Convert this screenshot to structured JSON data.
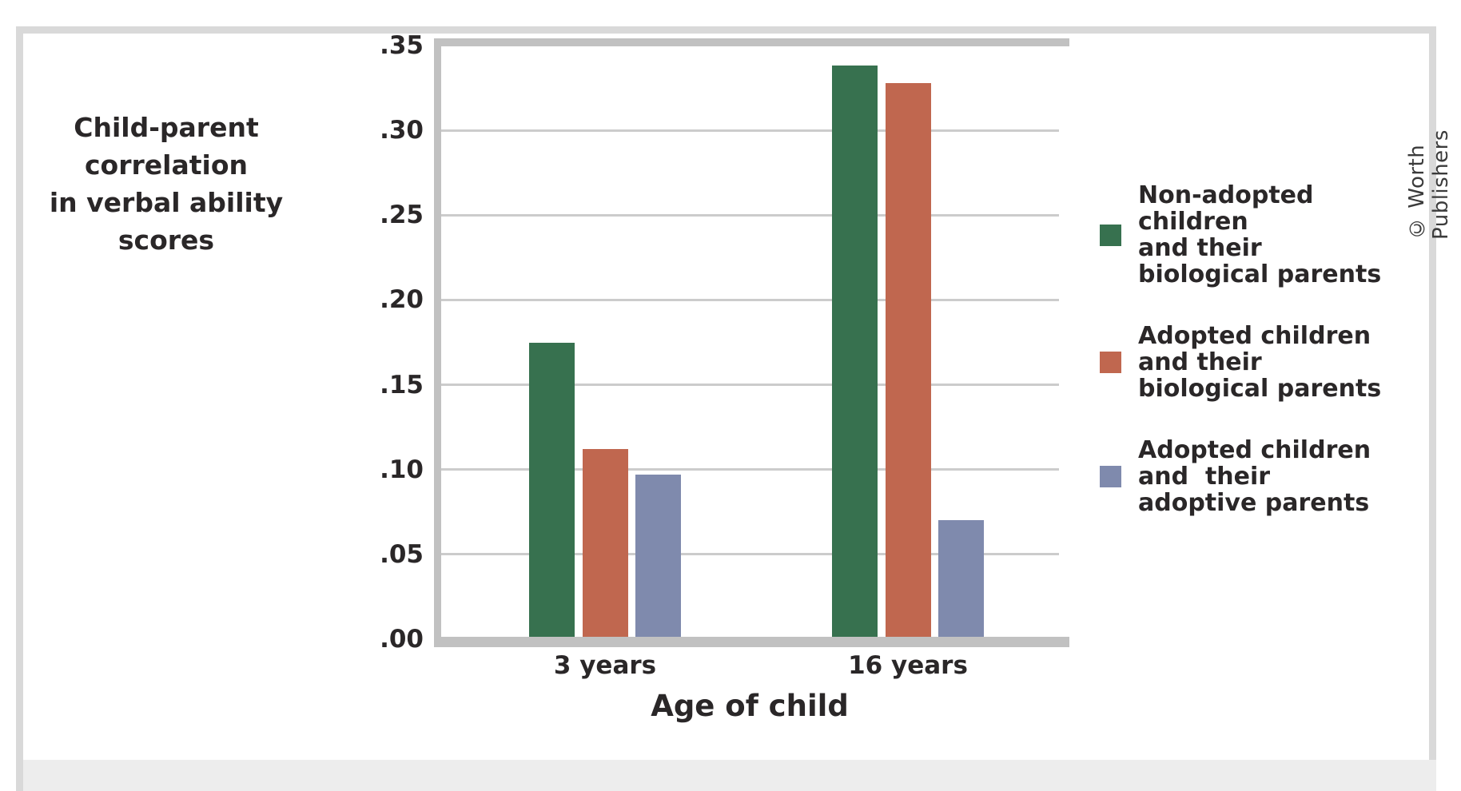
{
  "figure": {
    "title_lines": [
      "Child-parent correlation",
      "in verbal ability scores"
    ],
    "credit": "© Worth Publishers",
    "colors": {
      "series_green": "#37714f",
      "series_orange": "#c0674f",
      "series_blue": "#7f8aad",
      "axis_gray": "#c1c1c1",
      "gridline_gray": "#cccccc",
      "panel_border": "#d9d9d9",
      "footer_band": "#ededed",
      "text": "#2a2728"
    }
  },
  "legend": {
    "entries": [
      {
        "color": "#37714f",
        "lines": [
          "Non-adopted children",
          "and their",
          "biological parents"
        ]
      },
      {
        "color": "#c0674f",
        "lines": [
          "Adopted children",
          "and their",
          "biological parents"
        ]
      },
      {
        "color": "#7f8aad",
        "lines": [
          "Adopted children",
          "and  their",
          "adoptive parents"
        ]
      }
    ]
  },
  "chart_data": {
    "type": "bar",
    "title": "Child-parent correlation in verbal ability scores",
    "xlabel": "Age of child",
    "ylabel": "Child-parent correlation in verbal ability scores",
    "categories": [
      "3 years",
      "16 years"
    ],
    "series": [
      {
        "name": "Non-adopted children and their biological parents",
        "color": "#37714f",
        "values": [
          0.175,
          0.338
        ]
      },
      {
        "name": "Adopted children and their biological parents",
        "color": "#c0674f",
        "values": [
          0.112,
          0.328
        ]
      },
      {
        "name": "Adopted children and their adoptive parents",
        "color": "#7f8aad",
        "values": [
          0.097,
          0.07
        ]
      }
    ],
    "ylim": [
      0,
      0.35
    ],
    "yticks": [
      ".35",
      ".30",
      ".25",
      ".20",
      ".15",
      ".10",
      ".05",
      ".00"
    ],
    "grid": true,
    "legend_position": "right"
  }
}
